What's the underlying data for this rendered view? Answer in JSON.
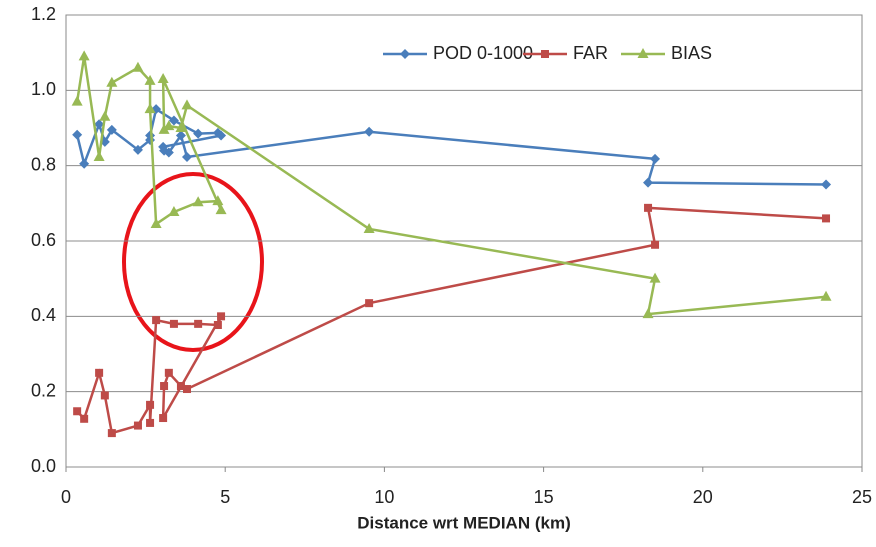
{
  "chart_data": {
    "type": "line",
    "x_label": "Distance wrt MEDIAN (km)",
    "x": [
      0.35,
      0.57,
      1.04,
      1.22,
      1.44,
      2.26,
      2.64,
      2.64,
      2.83,
      3.39,
      4.15,
      4.77,
      4.87,
      3.05,
      3.08,
      3.23,
      3.61,
      3.8,
      9.52,
      18.5,
      18.28,
      23.87
    ],
    "series": [
      {
        "name": "POD 0-1000",
        "color": "#4a7ebb",
        "marker": "diamond",
        "values": [
          0.882,
          0.805,
          0.91,
          0.863,
          0.895,
          0.842,
          0.868,
          0.88,
          0.95,
          0.92,
          0.885,
          0.887,
          0.88,
          0.85,
          0.84,
          0.835,
          0.88,
          0.823,
          0.89,
          0.818,
          0.755,
          0.75
        ]
      },
      {
        "name": "FAR",
        "color": "#be4b48",
        "marker": "square",
        "values": [
          0.148,
          0.128,
          0.25,
          0.19,
          0.09,
          0.11,
          0.165,
          0.117,
          0.39,
          0.38,
          0.38,
          0.377,
          0.4,
          0.13,
          0.215,
          0.25,
          0.215,
          0.207,
          0.435,
          0.59,
          0.688,
          0.66
        ]
      },
      {
        "name": "BIAS",
        "color": "#98b954",
        "marker": "triangle",
        "values": [
          0.97,
          1.09,
          0.823,
          0.93,
          1.02,
          1.06,
          1.025,
          0.95,
          0.645,
          0.677,
          0.703,
          0.706,
          0.682,
          1.03,
          0.895,
          0.905,
          0.9,
          0.96,
          0.632,
          0.5,
          0.406,
          0.452
        ]
      }
    ],
    "xlim": [
      0,
      25
    ],
    "xticks": [
      0,
      5,
      10,
      15,
      20,
      25
    ],
    "ylim": [
      0,
      1.2
    ],
    "yticks": [
      {
        "value": 0,
        "label": "0.0"
      },
      0.2,
      0.4,
      0.6,
      0.8,
      {
        "value": 1,
        "label": "1.0"
      },
      1.2
    ],
    "grid": true,
    "legend": "top-right"
  }
}
